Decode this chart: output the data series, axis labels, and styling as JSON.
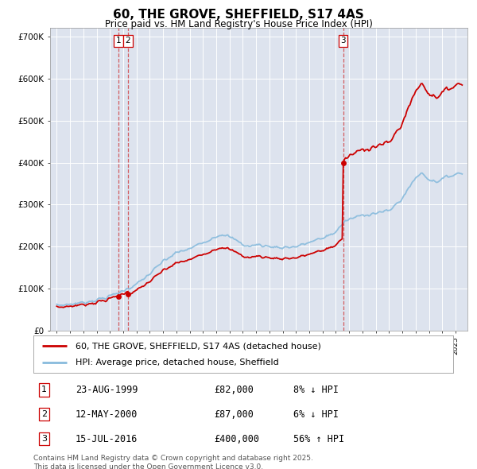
{
  "title": "60, THE GROVE, SHEFFIELD, S17 4AS",
  "subtitle": "Price paid vs. HM Land Registry's House Price Index (HPI)",
  "bg_color": "#dde3ee",
  "plot_bg_color": "#dde3ee",
  "red_line_color": "#cc0000",
  "blue_line_color": "#88bbdd",
  "vline_color": "#cc0000",
  "ylim": [
    0,
    720000
  ],
  "yticks": [
    0,
    100000,
    200000,
    300000,
    400000,
    500000,
    600000,
    700000
  ],
  "ytick_labels": [
    "£0",
    "£100K",
    "£200K",
    "£300K",
    "£400K",
    "£500K",
    "£600K",
    "£700K"
  ],
  "sale1_date": 1999.64,
  "sale1_price": 82000,
  "sale1_label": "1",
  "sale2_date": 2000.36,
  "sale2_price": 87000,
  "sale2_label": "2",
  "sale3_date": 2016.54,
  "sale3_price": 400000,
  "sale3_label": "3",
  "legend_line1": "60, THE GROVE, SHEFFIELD, S17 4AS (detached house)",
  "legend_line2": "HPI: Average price, detached house, Sheffield",
  "table_data": [
    {
      "num": "1",
      "date": "23-AUG-1999",
      "price": "£82,000",
      "change": "8% ↓ HPI"
    },
    {
      "num": "2",
      "date": "12-MAY-2000",
      "price": "£87,000",
      "change": "6% ↓ HPI"
    },
    {
      "num": "3",
      "date": "15-JUL-2016",
      "price": "£400,000",
      "change": "56% ↑ HPI"
    }
  ],
  "footer": "Contains HM Land Registry data © Crown copyright and database right 2025.\nThis data is licensed under the Open Government Licence v3.0."
}
